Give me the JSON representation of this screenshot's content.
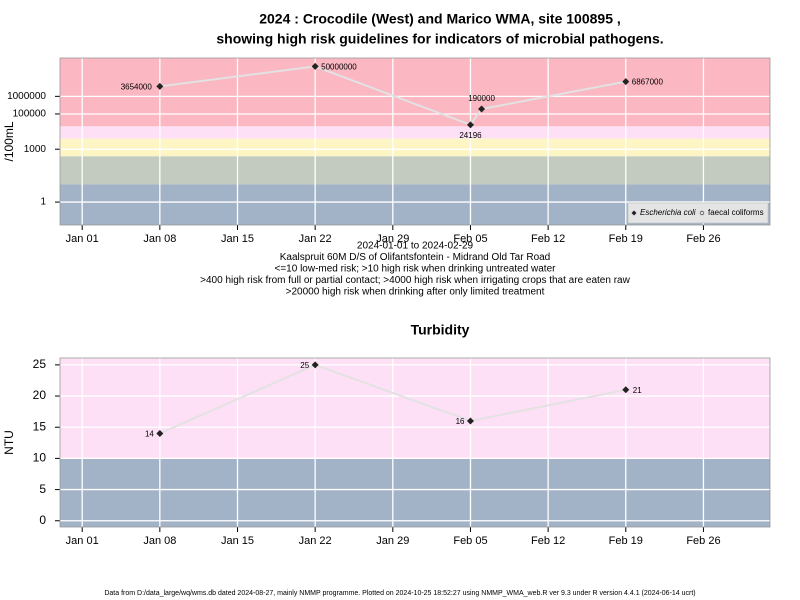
{
  "chart_data": [
    {
      "type": "line",
      "title": [
        "2024 : Crocodile (West) and Marico WMA, site 100895 ,",
        "showing high risk guidelines for indicators of microbial pathogens."
      ],
      "ylabel": "/100mL",
      "notes": [
        "2024-01-01 to 2024-02-29",
        "Kaalspruit 60M D/S of Olifantsfontein - Midrand Old Tar Road",
        "<=10 low-med risk; >10 high risk when drinking untreated water",
        ">400 high risk from full or partial contact; >4000 high risk when irrigating crops that are eaten raw",
        ">20000 high risk when drinking after only limited treatment"
      ],
      "x": [
        "2024-01-08",
        "2024-01-22",
        "2024-02-05",
        "2024-02-06",
        "2024-02-19"
      ],
      "series": [
        {
          "name": "Escherichia coli",
          "color": "#222222",
          "line_color": "#e2e2e2",
          "values": [
            3654000,
            50000000,
            24196,
            190000,
            6867000
          ]
        },
        {
          "name": "faecal coliforms",
          "color": "#555555",
          "line_color": "#e2e2e2",
          "values": [
            null,
            null,
            null,
            null,
            null
          ]
        }
      ],
      "ylog": true,
      "ylim": [
        0.05,
        150000000
      ],
      "yticks": [
        1,
        1000,
        100000,
        1000000
      ],
      "xlim": [
        "2023-12-30",
        "2024-03-03"
      ],
      "xticks": [
        {
          "value": "2024-01-01",
          "label": "Jan 01"
        },
        {
          "value": "2024-01-08",
          "label": "Jan 08"
        },
        {
          "value": "2024-01-15",
          "label": "Jan 15"
        },
        {
          "value": "2024-01-22",
          "label": "Jan 22"
        },
        {
          "value": "2024-01-29",
          "label": "Jan 29"
        },
        {
          "value": "2024-02-05",
          "label": "Feb 05"
        },
        {
          "value": "2024-02-12",
          "label": "Feb 12"
        },
        {
          "value": "2024-02-19",
          "label": "Feb 19"
        },
        {
          "value": "2024-02-26",
          "label": "Feb 26"
        }
      ],
      "bands": [
        {
          "from": null,
          "to": 10,
          "color": "#a2b3c8"
        },
        {
          "from": 10,
          "to": 400,
          "color": "#c3cbc0"
        },
        {
          "from": 400,
          "to": 4000,
          "color": "#fdf6c4"
        },
        {
          "from": 4000,
          "to": 20000,
          "color": "#fde0f6"
        },
        {
          "from": 20000,
          "to": null,
          "color": "#fbb7c2"
        }
      ],
      "grid": true,
      "legend": "bottom-right"
    },
    {
      "type": "line",
      "title": [
        "Turbidity"
      ],
      "ylabel": "NTU",
      "x": [
        "2024-01-08",
        "2024-01-22",
        "2024-02-05",
        "2024-02-19"
      ],
      "series": [
        {
          "name": null,
          "color": "#222222",
          "line_color": "#e2e2e2",
          "values": [
            14,
            25,
            16,
            21
          ]
        }
      ],
      "ylog": false,
      "ylim": [
        -1,
        26.1
      ],
      "yticks": [
        0,
        5,
        10,
        15,
        20,
        25
      ],
      "xlim": [
        "2023-12-30",
        "2024-03-03"
      ],
      "xticks": [
        {
          "value": "2024-01-01",
          "label": "Jan 01"
        },
        {
          "value": "2024-01-08",
          "label": "Jan 08"
        },
        {
          "value": "2024-01-15",
          "label": "Jan 15"
        },
        {
          "value": "2024-01-22",
          "label": "Jan 22"
        },
        {
          "value": "2024-01-29",
          "label": "Jan 29"
        },
        {
          "value": "2024-02-05",
          "label": "Feb 05"
        },
        {
          "value": "2024-02-12",
          "label": "Feb 12"
        },
        {
          "value": "2024-02-19",
          "label": "Feb 19"
        },
        {
          "value": "2024-02-26",
          "label": "Feb 26"
        }
      ],
      "bands": [
        {
          "from": null,
          "to": 10,
          "color": "#a2b3c8"
        },
        {
          "from": 10,
          "to": null,
          "color": "#fde0f6"
        }
      ],
      "grid": true,
      "legend": null
    }
  ],
  "footer": "Data from D:/data_large/wq/wms.db dated 2024-08-27, mainly NMMP programme. Plotted on 2024-10-25 18:52:27 using NMMP_WMA_web.R ver 9.3 under R version 4.4.1 (2024-06-14 ucrt)"
}
